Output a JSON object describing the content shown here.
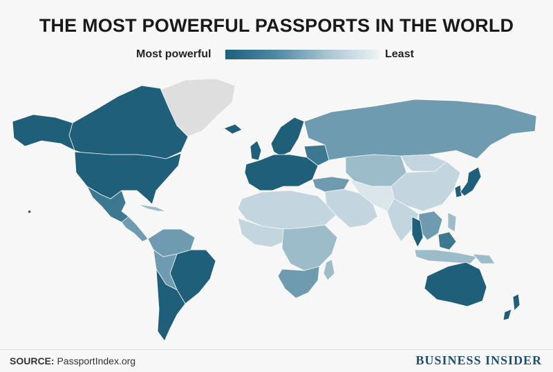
{
  "title": "THE MOST POWERFUL PASSPORTS IN THE WORLD",
  "legend": {
    "left_label": "Most powerful",
    "right_label": "Least",
    "gradient_colors": [
      "#1f5f7a",
      "#4f8aa3",
      "#a9c5d1",
      "#eef2f4"
    ]
  },
  "colors": {
    "no_data": "#dedede",
    "tier_1": "#1f5f7a",
    "tier_2": "#3d7891",
    "tier_3": "#6f9bb0",
    "tier_4": "#9dbcca",
    "tier_5": "#c3d6df",
    "tier_6": "#dbe6eb"
  },
  "footer": {
    "source_label": "SOURCE:",
    "source_value": "PassportIndex.org",
    "brand": "BUSINESS INSIDER"
  }
}
